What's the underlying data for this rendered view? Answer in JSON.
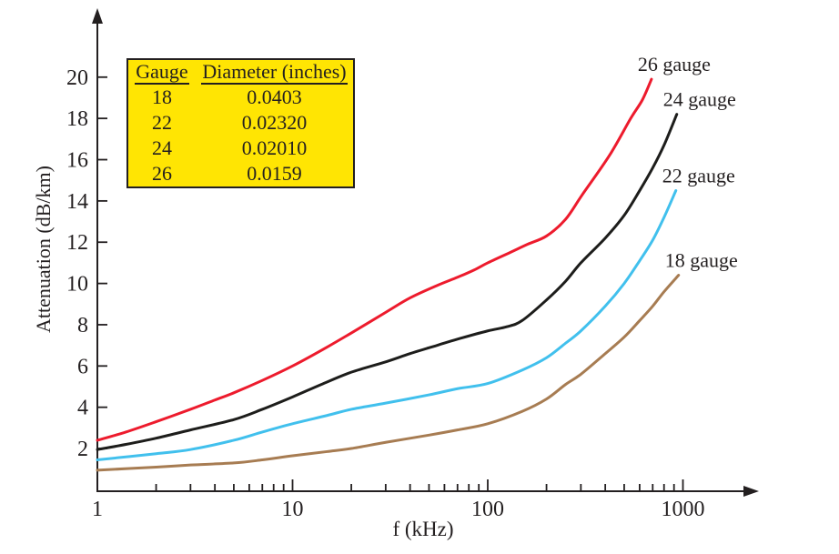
{
  "figure": {
    "background": "#ffffff",
    "text_color": "#231f20",
    "axis_color": "#231f20"
  },
  "chart_data": {
    "type": "line",
    "title": "",
    "xlabel": "f (kHz)",
    "ylabel": "Attenuation (dB/km)",
    "x_scale": "log",
    "xlim": [
      1,
      2000
    ],
    "ylim": [
      0,
      23
    ],
    "grid": false,
    "legend_position": "labels-at-curve-ends",
    "x_major_ticks": [
      "1",
      "10",
      "100",
      "1000"
    ],
    "x_minor_tick_decades": [
      1,
      10,
      100
    ],
    "y_ticks": [
      "2",
      "4",
      "6",
      "8",
      "10",
      "12",
      "14",
      "16",
      "18",
      "20"
    ],
    "series": [
      {
        "name": "26 gauge",
        "color": "#ed1b2d",
        "points": [
          [
            1,
            2.4
          ],
          [
            1.4,
            2.8
          ],
          [
            2,
            3.3
          ],
          [
            3,
            3.9
          ],
          [
            4,
            4.35
          ],
          [
            5,
            4.7
          ],
          [
            7,
            5.3
          ],
          [
            10,
            6.0
          ],
          [
            14,
            6.75
          ],
          [
            20,
            7.6
          ],
          [
            30,
            8.6
          ],
          [
            40,
            9.3
          ],
          [
            55,
            9.9
          ],
          [
            70,
            10.3
          ],
          [
            85,
            10.65
          ],
          [
            100,
            11.0
          ],
          [
            130,
            11.5
          ],
          [
            160,
            11.9
          ],
          [
            200,
            12.3
          ],
          [
            250,
            13.1
          ],
          [
            305,
            14.3
          ],
          [
            420,
            16.2
          ],
          [
            540,
            18.0
          ],
          [
            620,
            18.9
          ],
          [
            690,
            19.9
          ]
        ]
      },
      {
        "name": "24 gauge",
        "color": "#1d1d1b",
        "points": [
          [
            1,
            1.95
          ],
          [
            1.4,
            2.2
          ],
          [
            2,
            2.5
          ],
          [
            3,
            2.9
          ],
          [
            5,
            3.4
          ],
          [
            7,
            3.9
          ],
          [
            10,
            4.5
          ],
          [
            14,
            5.1
          ],
          [
            20,
            5.7
          ],
          [
            30,
            6.2
          ],
          [
            40,
            6.6
          ],
          [
            55,
            7.0
          ],
          [
            70,
            7.3
          ],
          [
            100,
            7.7
          ],
          [
            125,
            7.9
          ],
          [
            150,
            8.2
          ],
          [
            200,
            9.2
          ],
          [
            250,
            10.1
          ],
          [
            300,
            11.0
          ],
          [
            400,
            12.2
          ],
          [
            500,
            13.3
          ],
          [
            600,
            14.5
          ],
          [
            700,
            15.6
          ],
          [
            800,
            16.7
          ],
          [
            930,
            18.2
          ]
        ]
      },
      {
        "name": "22 gauge",
        "color": "#41c0ed",
        "points": [
          [
            1,
            1.45
          ],
          [
            2,
            1.75
          ],
          [
            3,
            1.95
          ],
          [
            5,
            2.4
          ],
          [
            7,
            2.8
          ],
          [
            10,
            3.2
          ],
          [
            15,
            3.6
          ],
          [
            20,
            3.9
          ],
          [
            30,
            4.2
          ],
          [
            50,
            4.6
          ],
          [
            70,
            4.9
          ],
          [
            100,
            5.15
          ],
          [
            150,
            5.8
          ],
          [
            200,
            6.4
          ],
          [
            250,
            7.1
          ],
          [
            300,
            7.7
          ],
          [
            400,
            8.9
          ],
          [
            500,
            10.0
          ],
          [
            600,
            11.1
          ],
          [
            700,
            12.1
          ],
          [
            800,
            13.2
          ],
          [
            920,
            14.5
          ]
        ]
      },
      {
        "name": "18 gauge",
        "color": "#a77c52",
        "points": [
          [
            1,
            0.95
          ],
          [
            2,
            1.1
          ],
          [
            3,
            1.2
          ],
          [
            5,
            1.3
          ],
          [
            7,
            1.45
          ],
          [
            10,
            1.65
          ],
          [
            15,
            1.85
          ],
          [
            20,
            2.0
          ],
          [
            30,
            2.3
          ],
          [
            50,
            2.65
          ],
          [
            70,
            2.9
          ],
          [
            100,
            3.2
          ],
          [
            150,
            3.8
          ],
          [
            200,
            4.4
          ],
          [
            250,
            5.1
          ],
          [
            300,
            5.6
          ],
          [
            400,
            6.6
          ],
          [
            500,
            7.4
          ],
          [
            600,
            8.2
          ],
          [
            700,
            8.9
          ],
          [
            800,
            9.6
          ],
          [
            950,
            10.4
          ]
        ]
      }
    ]
  },
  "legend_table": {
    "background": "#ffe503",
    "border_color": "#231f20",
    "headers": [
      "Gauge",
      "Diameter (inches)"
    ],
    "rows": [
      [
        "18",
        "0.0403"
      ],
      [
        "22",
        "0.02320"
      ],
      [
        "24",
        "0.02010"
      ],
      [
        "26",
        "0.0159"
      ]
    ]
  }
}
